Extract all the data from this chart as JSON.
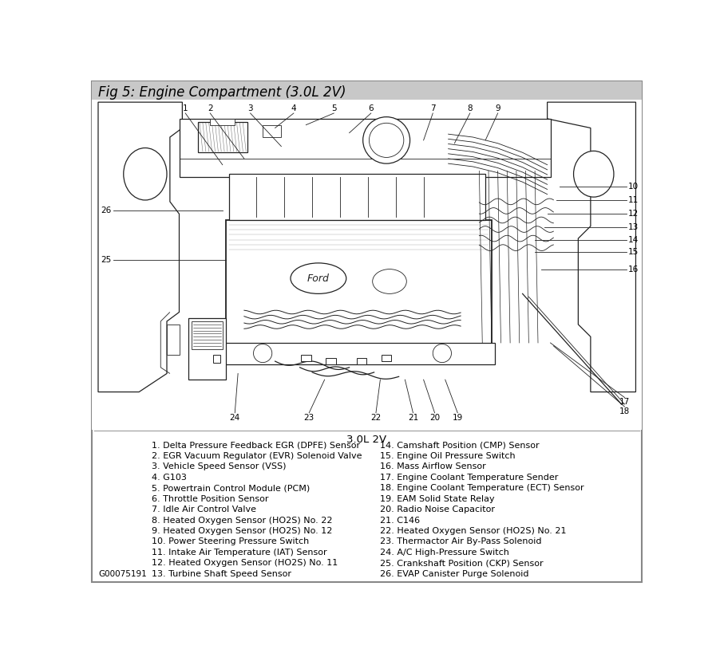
{
  "title": "Fig 5: Engine Compartment (3.0L 2V)",
  "title_bg": "#c8c8c8",
  "outer_border_color": "#888888",
  "bg_color": "#ffffff",
  "subtitle": "3.0L 2V",
  "legend_left": [
    "1. Delta Pressure Feedback EGR (DPFE) Sensor",
    "2. EGR Vacuum Regulator (EVR) Solenoid Valve",
    "3. Vehicle Speed Sensor (VSS)",
    "4. G103",
    "5. Powertrain Control Module (PCM)",
    "6. Throttle Position Sensor",
    "7. Idle Air Control Valve",
    "8. Heated Oxygen Sensor (HO2S) No. 22",
    "9. Heated Oxygen Sensor (HO2S) No. 12",
    "10. Power Steering Pressure Switch",
    "11. Intake Air Temperature (IAT) Sensor",
    "12. Heated Oxygen Sensor (HO2S) No. 11",
    "13. Turbine Shaft Speed Sensor"
  ],
  "legend_right": [
    "14. Camshaft Position (CMP) Sensor",
    "15. Engine Oil Pressure Switch",
    "16. Mass Airflow Sensor",
    "17. Engine Coolant Temperature Sender",
    "18. Engine Coolant Temperature (ECT) Sensor",
    "19. EAM Solid State Relay",
    "20. Radio Noise Capacitor",
    "21. C146",
    "22. Heated Oxygen Sensor (HO2S) No. 21",
    "23. Thermactor Air By-Pass Solenoid",
    "24. A/C High-Pressure Switch",
    "25. Crankshaft Position (CKP) Sensor",
    "26. EVAP Canister Purge Solenoid"
  ],
  "caption": "G00075191",
  "font_size_legend": 8.0,
  "font_size_title": 12,
  "font_size_labels": 7.5,
  "font_size_subtitle": 9.5,
  "line_color": "#222222",
  "diagram_area_color": "#ffffff"
}
